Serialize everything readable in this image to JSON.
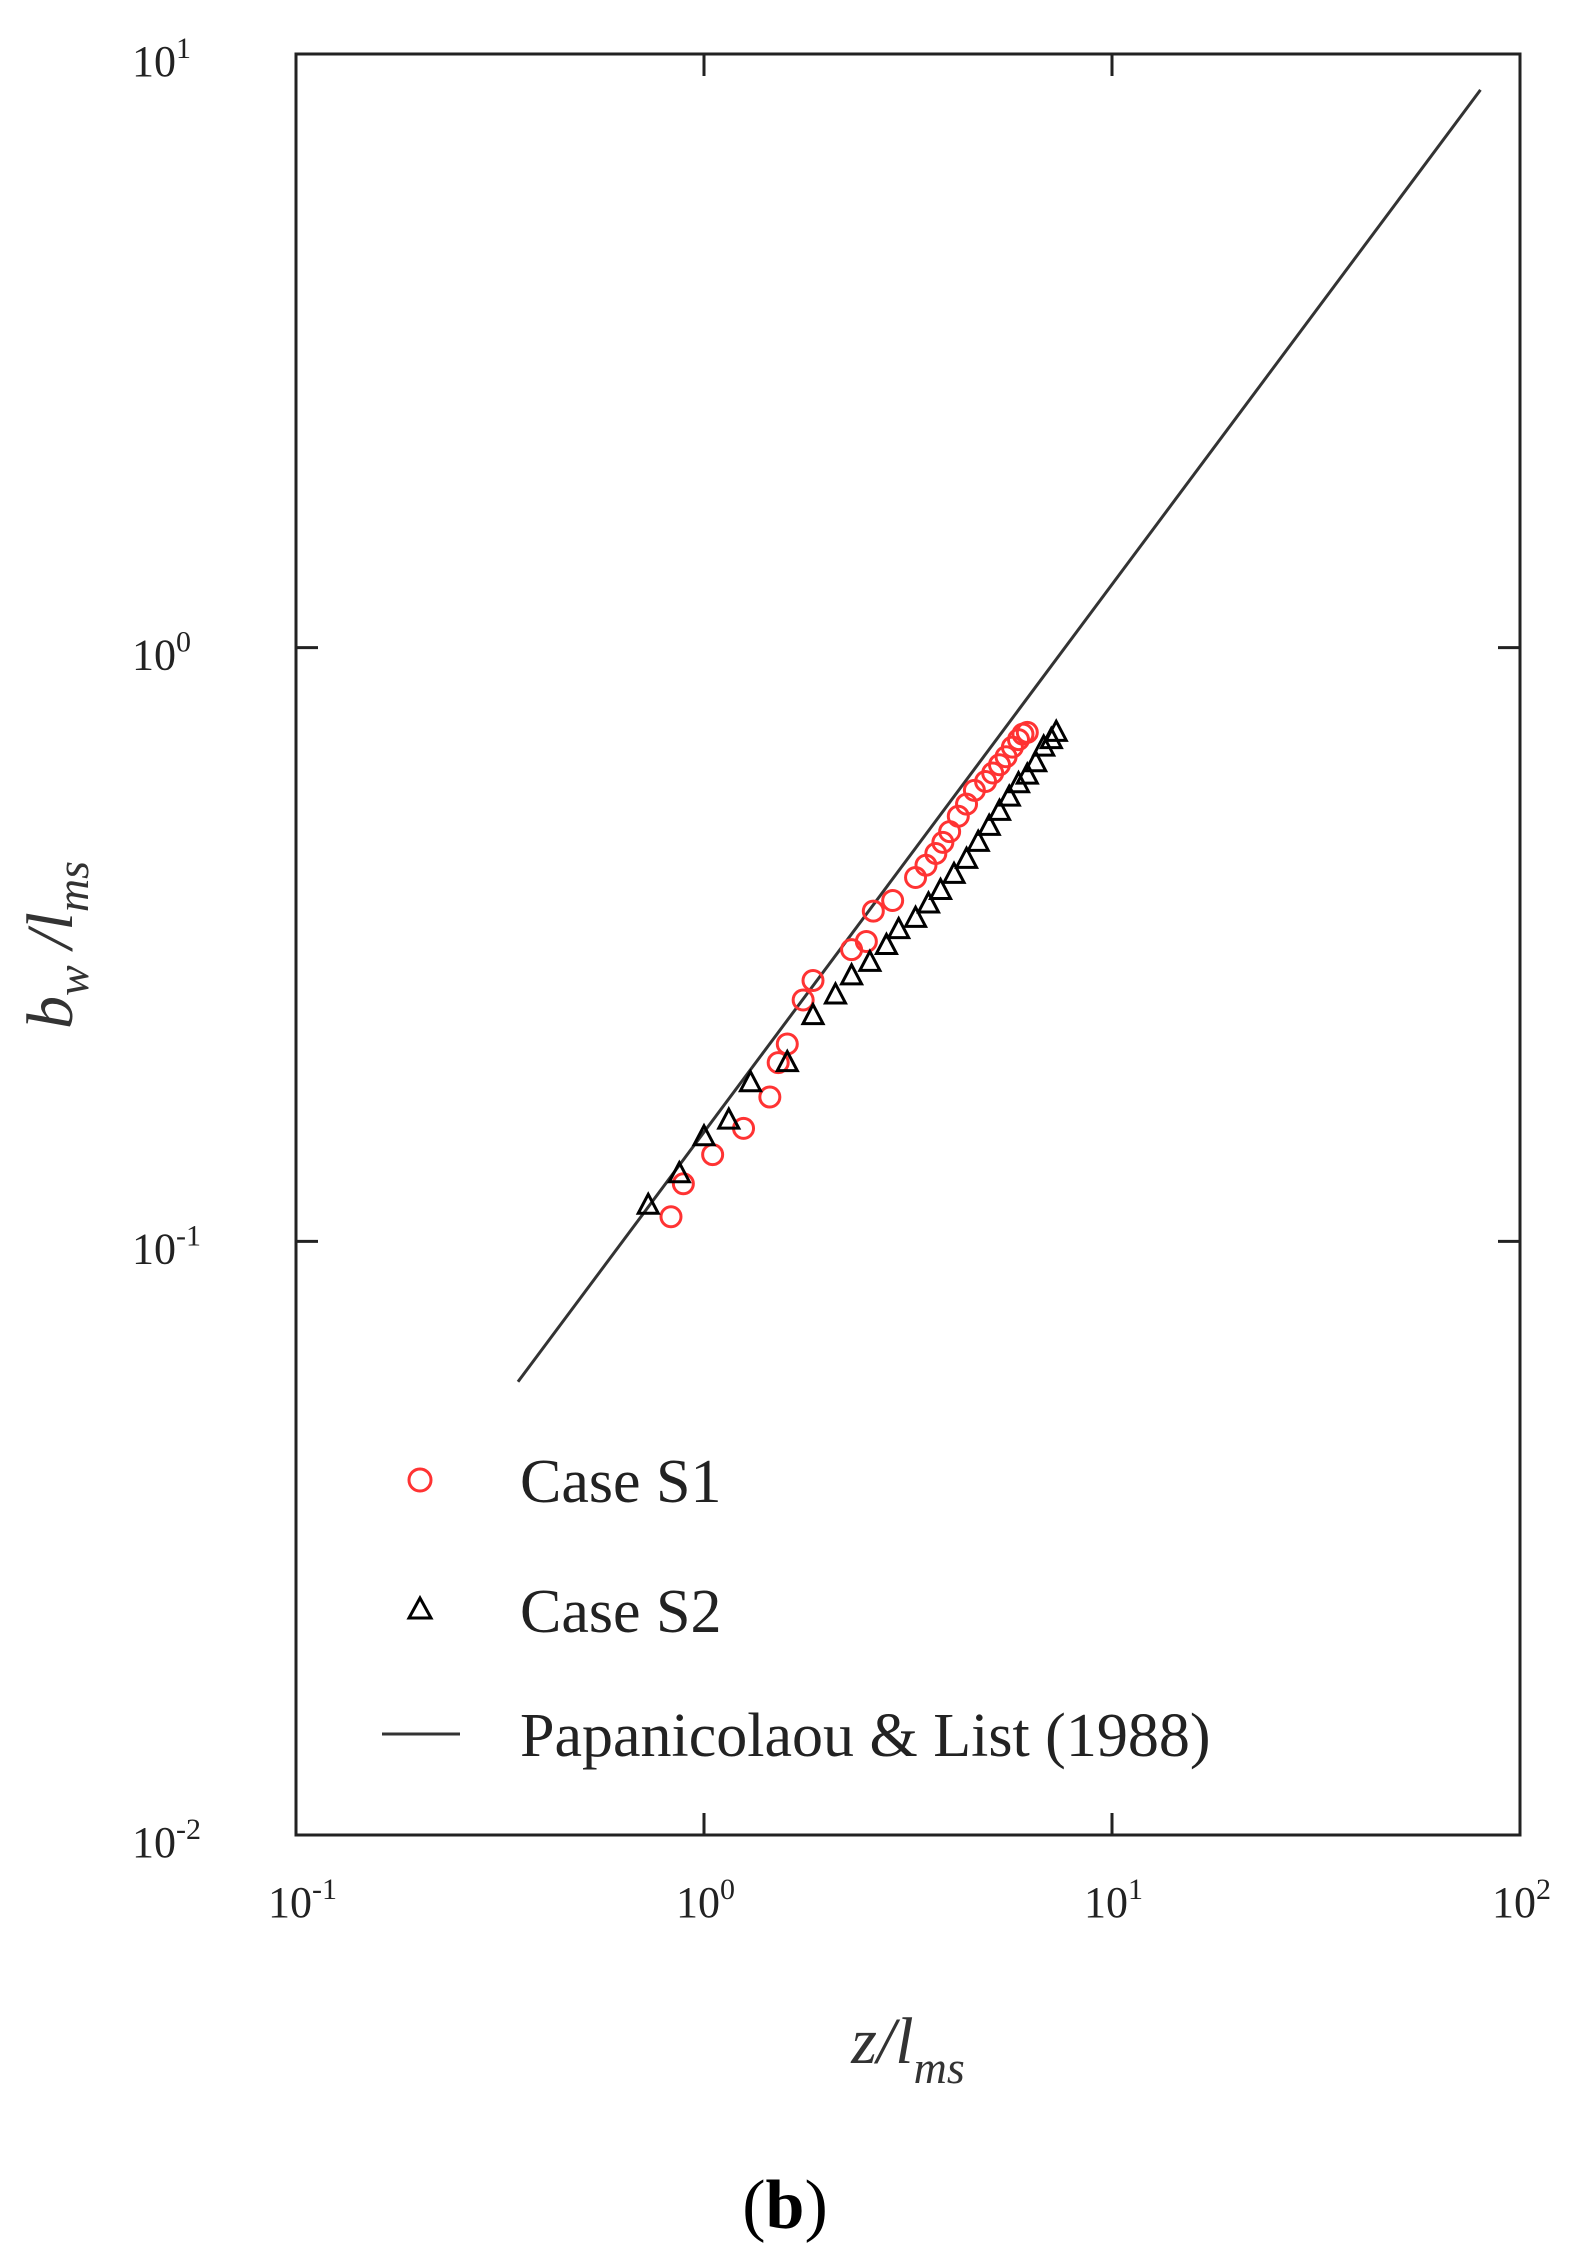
{
  "chart_data": {
    "type": "scatter",
    "x_scale": "log",
    "y_scale": "log",
    "xlim": [
      0.1,
      100
    ],
    "ylim": [
      0.01,
      10
    ],
    "x_ticks": [
      {
        "value": 0.1,
        "base": "10",
        "exp": "-1"
      },
      {
        "value": 1,
        "base": "10",
        "exp": "0"
      },
      {
        "value": 10,
        "base": "10",
        "exp": "1"
      },
      {
        "value": 100,
        "base": "10",
        "exp": "2"
      }
    ],
    "y_ticks": [
      {
        "value": 0.01,
        "base": "10",
        "exp": "-2"
      },
      {
        "value": 0.1,
        "base": "10",
        "exp": "-1"
      },
      {
        "value": 1,
        "base": "10",
        "exp": "0"
      },
      {
        "value": 10,
        "base": "10",
        "exp": "1"
      }
    ],
    "xlabel": {
      "main": "z/l",
      "sub": "ms"
    },
    "ylabel": {
      "main": "b",
      "sub1": "w",
      "mid": " /l",
      "sub2": "ms"
    },
    "legend_position": "bottom-left",
    "series": [
      {
        "name": "Case S1",
        "marker": "circle",
        "color": "#ff3333",
        "points": [
          [
            0.83,
            0.11
          ],
          [
            0.89,
            0.125
          ],
          [
            1.05,
            0.14
          ],
          [
            1.25,
            0.155
          ],
          [
            1.45,
            0.175
          ],
          [
            1.52,
            0.2
          ],
          [
            1.6,
            0.215
          ],
          [
            1.75,
            0.255
          ],
          [
            1.85,
            0.275
          ],
          [
            2.3,
            0.31
          ],
          [
            2.5,
            0.32
          ],
          [
            2.6,
            0.36
          ],
          [
            2.9,
            0.375
          ],
          [
            3.3,
            0.41
          ],
          [
            3.5,
            0.43
          ],
          [
            3.7,
            0.45
          ],
          [
            3.85,
            0.47
          ],
          [
            4.0,
            0.49
          ],
          [
            4.2,
            0.52
          ],
          [
            4.4,
            0.545
          ],
          [
            4.6,
            0.575
          ],
          [
            4.9,
            0.595
          ],
          [
            5.1,
            0.615
          ],
          [
            5.3,
            0.635
          ],
          [
            5.5,
            0.655
          ],
          [
            5.7,
            0.68
          ],
          [
            5.9,
            0.7
          ],
          [
            6.05,
            0.715
          ],
          [
            6.2,
            0.72
          ]
        ]
      },
      {
        "name": "Case S2",
        "marker": "triangle",
        "color": "#000000",
        "points": [
          [
            0.73,
            0.115
          ],
          [
            0.87,
            0.13
          ],
          [
            1.0,
            0.15
          ],
          [
            1.15,
            0.16
          ],
          [
            1.3,
            0.185
          ],
          [
            1.6,
            0.2
          ],
          [
            1.85,
            0.24
          ],
          [
            2.1,
            0.26
          ],
          [
            2.3,
            0.28
          ],
          [
            2.55,
            0.295
          ],
          [
            2.8,
            0.315
          ],
          [
            3.0,
            0.335
          ],
          [
            3.3,
            0.35
          ],
          [
            3.55,
            0.37
          ],
          [
            3.8,
            0.39
          ],
          [
            4.1,
            0.415
          ],
          [
            4.4,
            0.44
          ],
          [
            4.7,
            0.47
          ],
          [
            5.0,
            0.5
          ],
          [
            5.3,
            0.53
          ],
          [
            5.6,
            0.56
          ],
          [
            5.9,
            0.59
          ],
          [
            6.2,
            0.61
          ],
          [
            6.5,
            0.64
          ],
          [
            6.8,
            0.68
          ],
          [
            7.1,
            0.7
          ],
          [
            7.3,
            0.72
          ]
        ]
      },
      {
        "name": "Papanicolaou & List (1988)",
        "type": "line",
        "color": "#333333",
        "points": [
          [
            0.35,
            0.058
          ],
          [
            80,
            8.7
          ]
        ]
      }
    ]
  },
  "panel_label": {
    "open": "(",
    "letter": "b",
    "close": ")"
  }
}
